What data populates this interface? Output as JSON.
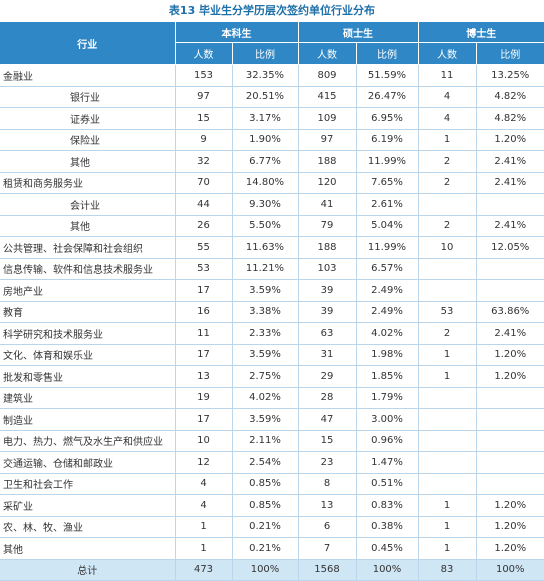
{
  "title": "表13  毕业生分学历层次签约单位行业分布",
  "headers": {
    "industry": "行业",
    "groups": [
      "本科生",
      "硕士生",
      "博士生"
    ],
    "count": "人数",
    "ratio": "比例"
  },
  "rows": [
    {
      "label": "金融业",
      "indent": false,
      "cells": [
        "153",
        "32.35%",
        "809",
        "51.59%",
        "11",
        "13.25%"
      ]
    },
    {
      "label": "银行业",
      "indent": true,
      "cells": [
        "97",
        "20.51%",
        "415",
        "26.47%",
        "4",
        "4.82%"
      ]
    },
    {
      "label": "证券业",
      "indent": true,
      "cells": [
        "15",
        "3.17%",
        "109",
        "6.95%",
        "4",
        "4.82%"
      ]
    },
    {
      "label": "保险业",
      "indent": true,
      "cells": [
        "9",
        "1.90%",
        "97",
        "6.19%",
        "1",
        "1.20%"
      ]
    },
    {
      "label": "其他",
      "indent": true,
      "cells": [
        "32",
        "6.77%",
        "188",
        "11.99%",
        "2",
        "2.41%"
      ]
    },
    {
      "label": "租赁和商务服务业",
      "indent": false,
      "cells": [
        "70",
        "14.80%",
        "120",
        "7.65%",
        "2",
        "2.41%"
      ]
    },
    {
      "label": "会计业",
      "indent": true,
      "cells": [
        "44",
        "9.30%",
        "41",
        "2.61%",
        "",
        ""
      ]
    },
    {
      "label": "其他",
      "indent": true,
      "cells": [
        "26",
        "5.50%",
        "79",
        "5.04%",
        "2",
        "2.41%"
      ]
    },
    {
      "label": "公共管理、社会保障和社会组织",
      "indent": false,
      "cells": [
        "55",
        "11.63%",
        "188",
        "11.99%",
        "10",
        "12.05%"
      ]
    },
    {
      "label": "信息传输、软件和信息技术服务业",
      "indent": false,
      "cells": [
        "53",
        "11.21%",
        "103",
        "6.57%",
        "",
        ""
      ]
    },
    {
      "label": "房地产业",
      "indent": false,
      "cells": [
        "17",
        "3.59%",
        "39",
        "2.49%",
        "",
        ""
      ]
    },
    {
      "label": "教育",
      "indent": false,
      "cells": [
        "16",
        "3.38%",
        "39",
        "2.49%",
        "53",
        "63.86%"
      ]
    },
    {
      "label": "科学研究和技术服务业",
      "indent": false,
      "cells": [
        "11",
        "2.33%",
        "63",
        "4.02%",
        "2",
        "2.41%"
      ]
    },
    {
      "label": "文化、体育和娱乐业",
      "indent": false,
      "cells": [
        "17",
        "3.59%",
        "31",
        "1.98%",
        "1",
        "1.20%"
      ]
    },
    {
      "label": "批发和零售业",
      "indent": false,
      "cells": [
        "13",
        "2.75%",
        "29",
        "1.85%",
        "1",
        "1.20%"
      ]
    },
    {
      "label": "建筑业",
      "indent": false,
      "cells": [
        "19",
        "4.02%",
        "28",
        "1.79%",
        "",
        ""
      ]
    },
    {
      "label": "制造业",
      "indent": false,
      "cells": [
        "17",
        "3.59%",
        "47",
        "3.00%",
        "",
        ""
      ]
    },
    {
      "label": "电力、热力、燃气及水生产和供应业",
      "indent": false,
      "cells": [
        "10",
        "2.11%",
        "15",
        "0.96%",
        "",
        ""
      ]
    },
    {
      "label": "交通运输、仓储和邮政业",
      "indent": false,
      "cells": [
        "12",
        "2.54%",
        "23",
        "1.47%",
        "",
        ""
      ]
    },
    {
      "label": "卫生和社会工作",
      "indent": false,
      "cells": [
        "4",
        "0.85%",
        "8",
        "0.51%",
        "",
        ""
      ]
    },
    {
      "label": "采矿业",
      "indent": false,
      "cells": [
        "4",
        "0.85%",
        "13",
        "0.83%",
        "1",
        "1.20%"
      ]
    },
    {
      "label": "农、林、牧、渔业",
      "indent": false,
      "cells": [
        "1",
        "0.21%",
        "6",
        "0.38%",
        "1",
        "1.20%"
      ]
    },
    {
      "label": "其他",
      "indent": false,
      "cells": [
        "1",
        "0.21%",
        "7",
        "0.45%",
        "1",
        "1.20%"
      ]
    }
  ],
  "total": {
    "label": "总计",
    "cells": [
      "473",
      "100%",
      "1568",
      "100%",
      "83",
      "100%"
    ]
  }
}
